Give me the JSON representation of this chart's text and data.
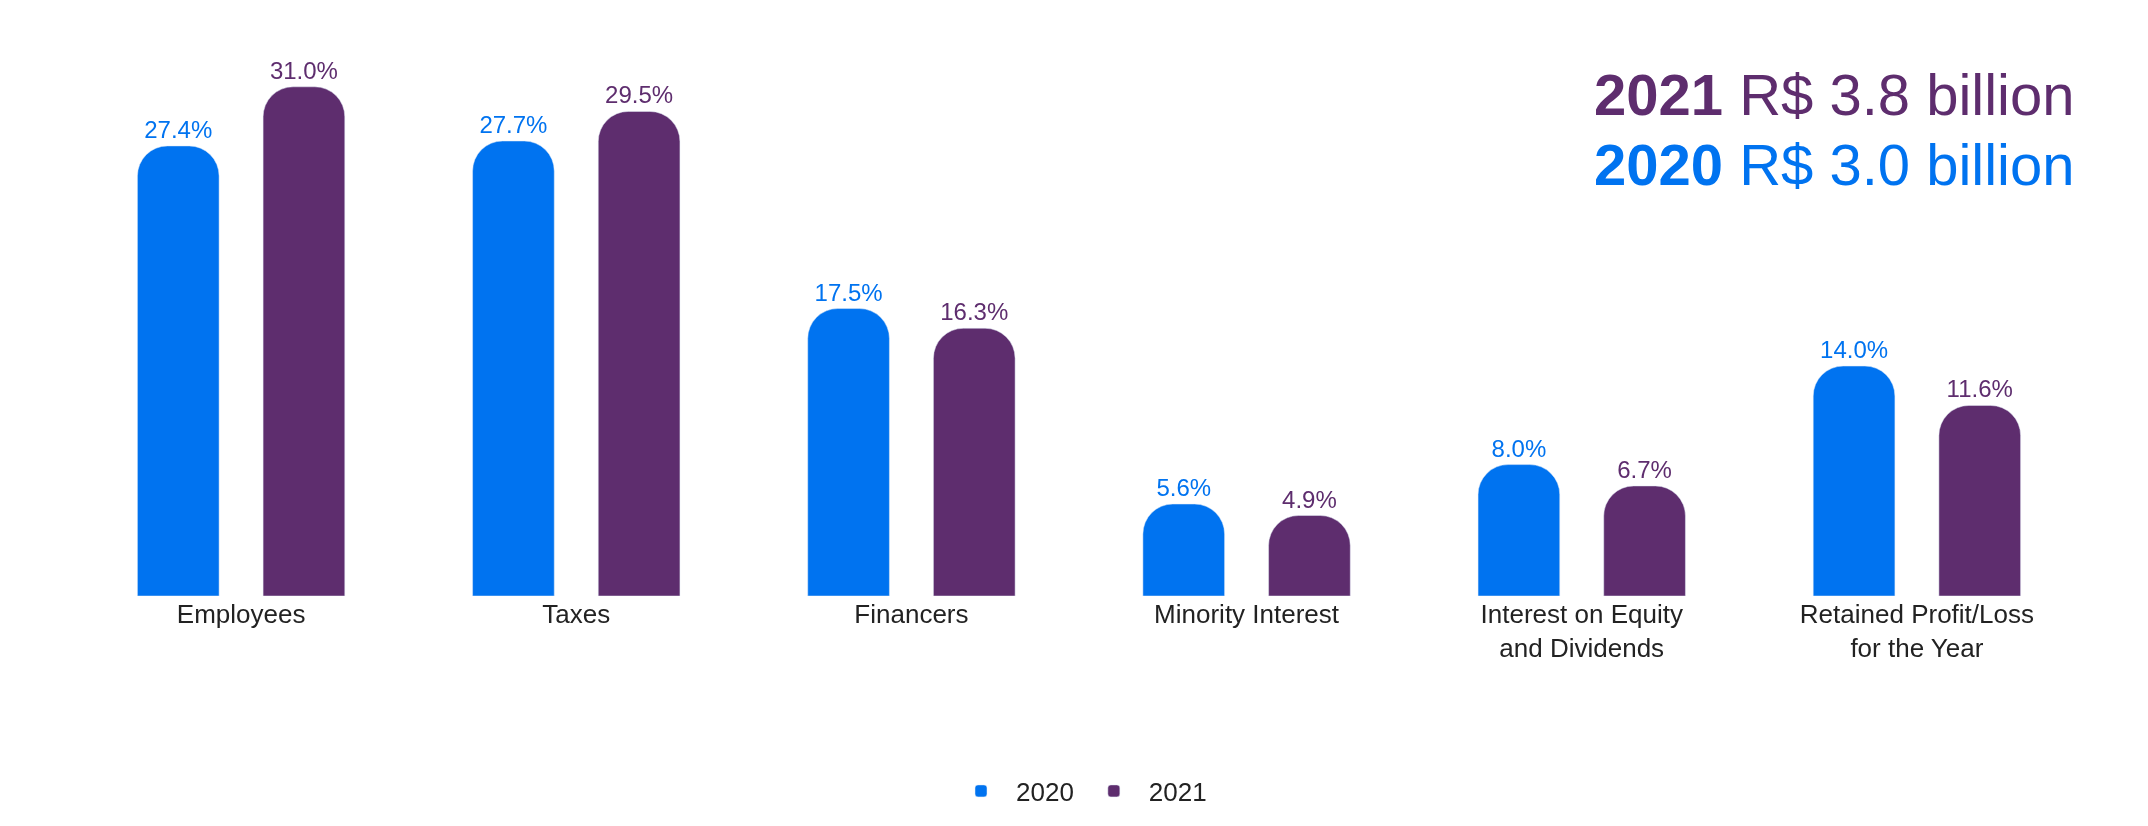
{
  "chart_data": {
    "type": "bar",
    "categories": [
      "Employees",
      "Taxes",
      "Financers",
      "Minority Interest",
      "Interest on Equity and Dividends",
      "Retained Profit/Loss for the Year"
    ],
    "series": [
      {
        "name": "2020",
        "color": "#0073f0",
        "values": [
          27.4,
          27.7,
          17.5,
          5.6,
          8.0,
          14.0
        ],
        "value_labels": [
          "27.4%",
          "27.7%",
          "17.5%",
          "5.6%",
          "8.0%",
          "14.0%"
        ]
      },
      {
        "name": "2021",
        "color": "#5e2d6e",
        "values": [
          31.0,
          29.5,
          16.3,
          4.9,
          6.7,
          11.6
        ],
        "value_labels": [
          "31.0%",
          "29.5%",
          "16.3%",
          "4.9%",
          "6.7%",
          "11.6%"
        ]
      }
    ],
    "annotations": [
      "2021 R$ 3.8 billion",
      "2020 R$ 3.0 billion"
    ],
    "legend": "bottom"
  }
}
